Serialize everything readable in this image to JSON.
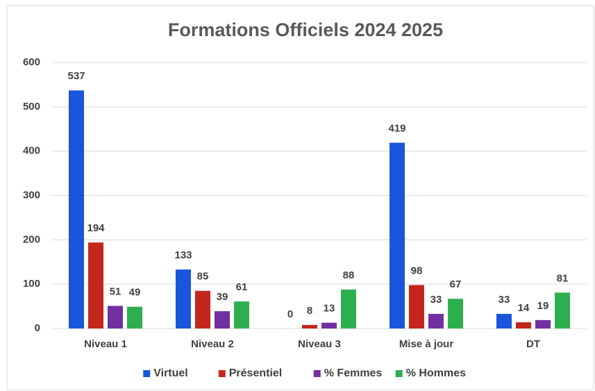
{
  "chart_data": {
    "type": "bar",
    "title": "Formations Officiels 2024 2025",
    "categories": [
      "Niveau 1",
      "Niveau 2",
      "Niveau 3",
      "Mise à jour",
      "DT"
    ],
    "series": [
      {
        "name": "Virtuel",
        "color": "#1a56db",
        "values": [
          537,
          133,
          0,
          419,
          33
        ]
      },
      {
        "name": "Présentiel",
        "color": "#c4261d",
        "values": [
          194,
          85,
          8,
          98,
          14
        ]
      },
      {
        "name": "% Femmes",
        "color": "#7030a0",
        "values": [
          51,
          39,
          13,
          33,
          19
        ]
      },
      {
        "name": "% Hommes",
        "color": "#2eaf4f",
        "values": [
          49,
          61,
          88,
          67,
          81
        ]
      }
    ],
    "ylim": [
      0,
      600
    ],
    "yticks": [
      0,
      100,
      200,
      300,
      400,
      500,
      600
    ],
    "grid": true,
    "legend": "bottom"
  }
}
